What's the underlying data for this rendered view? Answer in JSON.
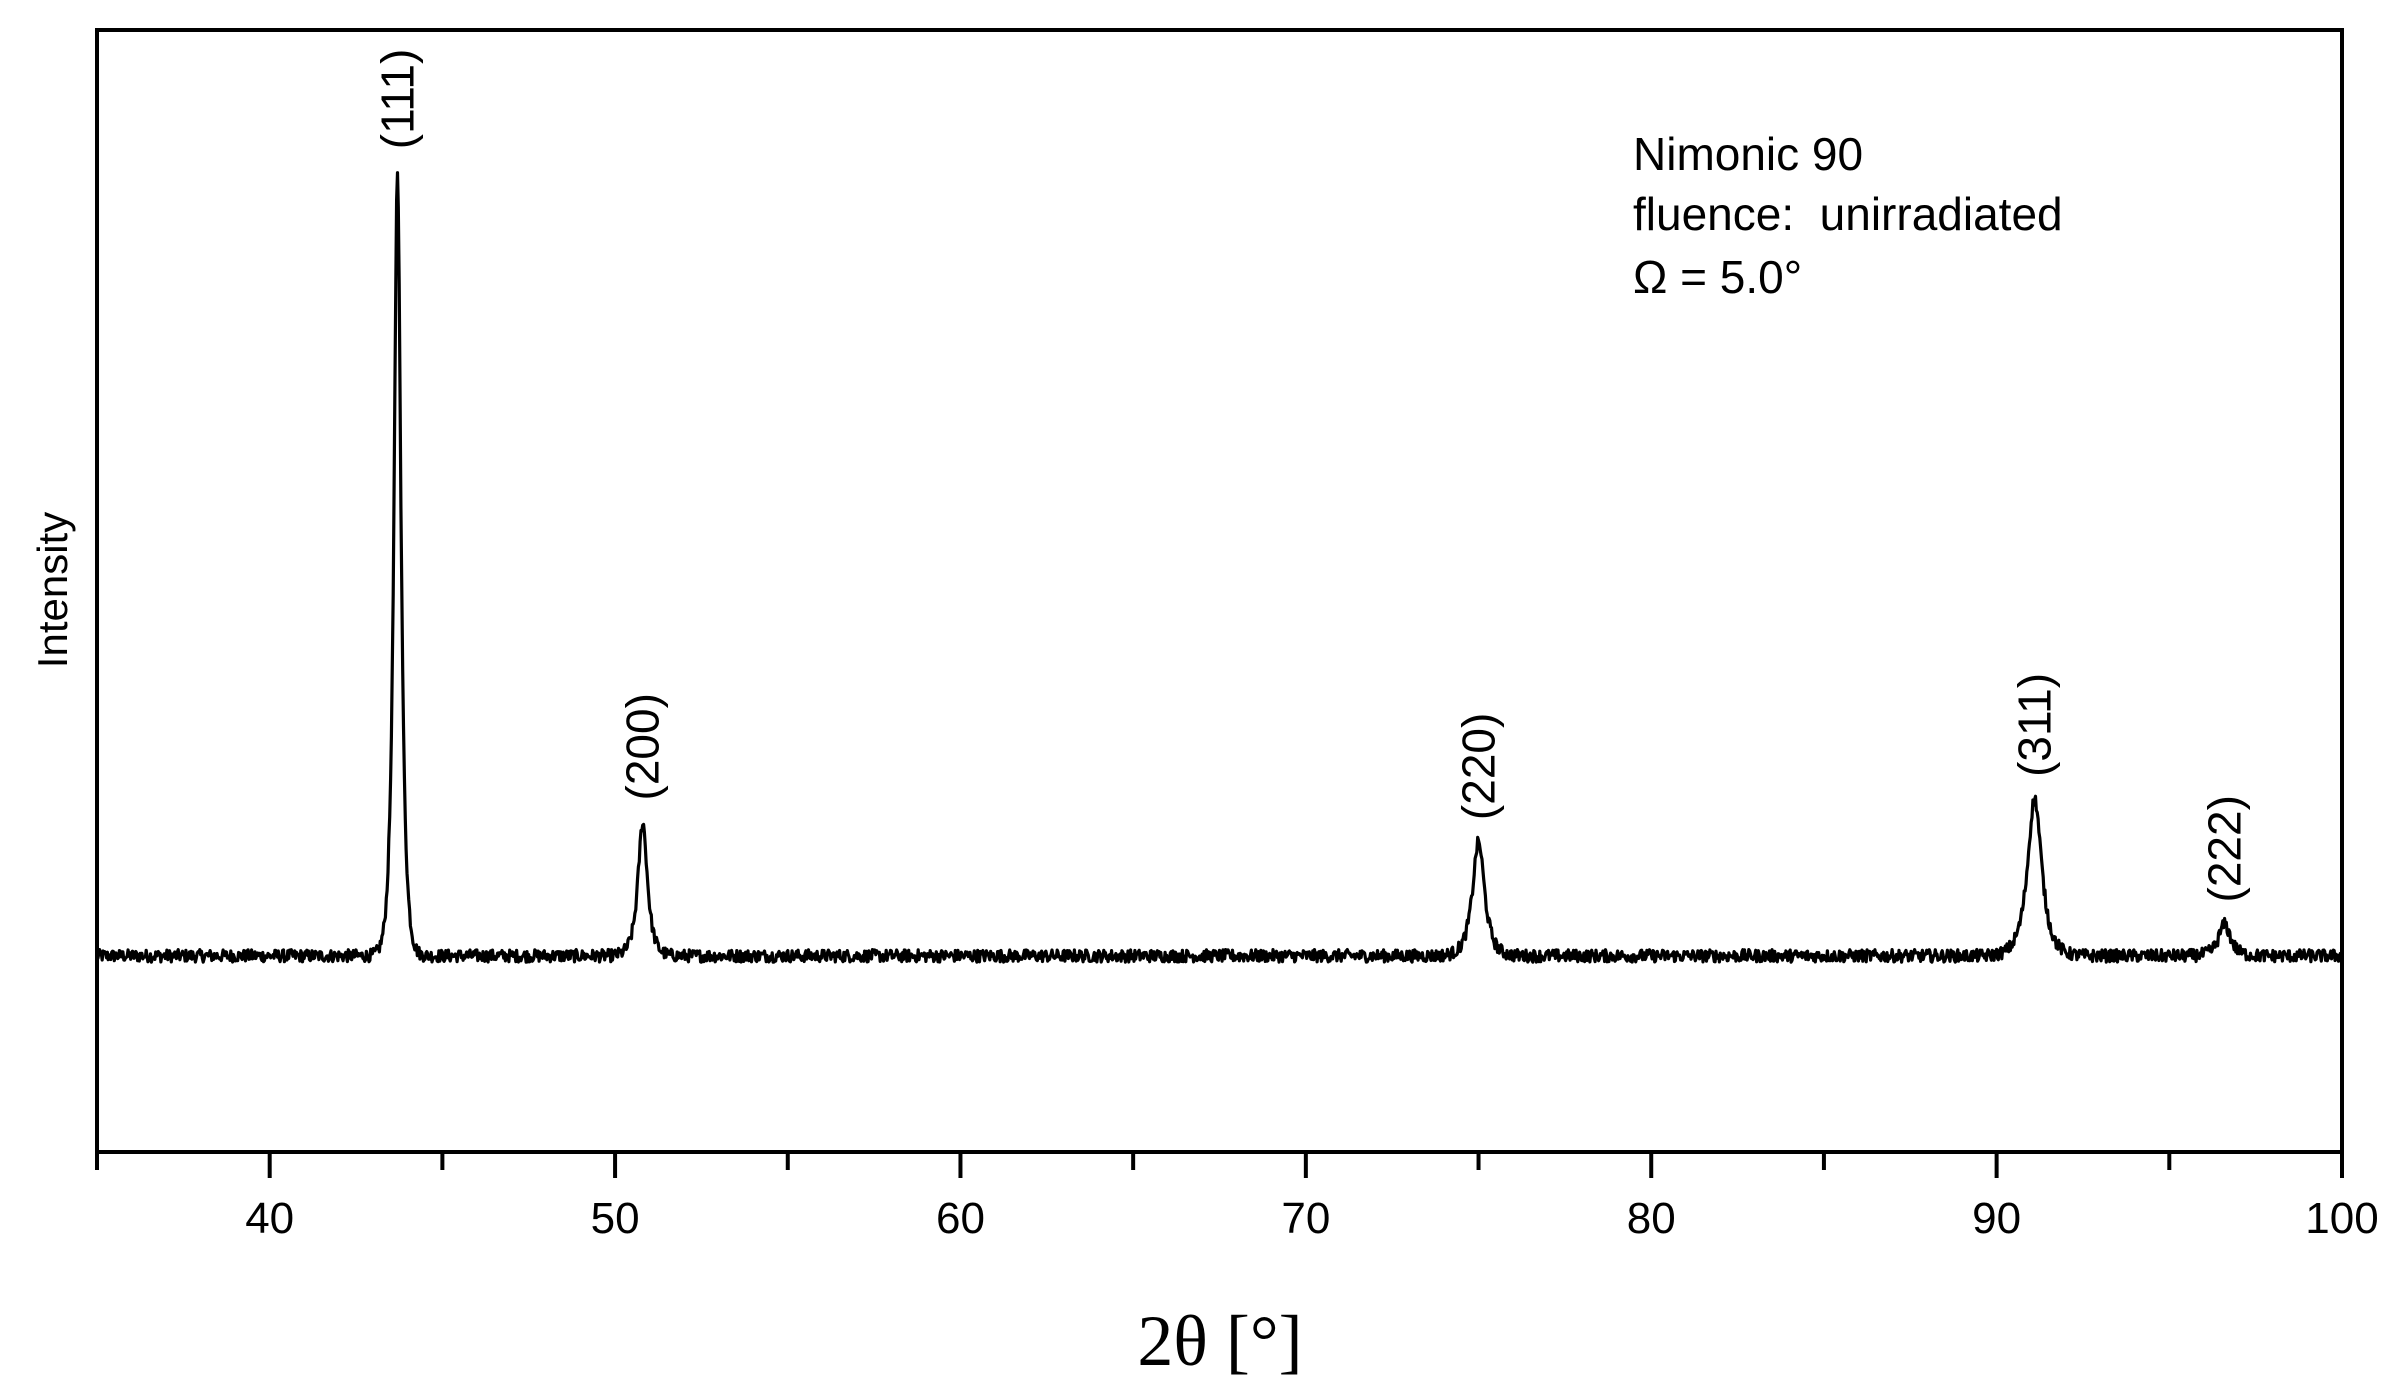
{
  "chart_data": {
    "type": "line",
    "title": "",
    "xlabel": "2θ [°]",
    "ylabel": "Intensity",
    "xlim": [
      35,
      100
    ],
    "ylim": [
      -0.25,
      1.18
    ],
    "x_ticks": [
      40,
      50,
      60,
      70,
      80,
      90,
      100
    ],
    "x_minor_ticks": [
      35,
      45,
      55,
      65,
      75,
      85,
      95
    ],
    "y_ticks_shown": false,
    "grid": false,
    "legend": "none",
    "line_color": "#000000",
    "annotation_lines": [
      "Nimonic 90",
      "fluence:  unirradiated",
      "Ω = 5.0°"
    ],
    "peaks": [
      {
        "label": "(111)",
        "x": 43.7,
        "height": 1.0,
        "width": 0.16
      },
      {
        "label": "(200)",
        "x": 50.8,
        "height": 0.17,
        "width": 0.22
      },
      {
        "label": "(220)",
        "x": 75.0,
        "height": 0.145,
        "width": 0.28
      },
      {
        "label": "(311)",
        "x": 91.1,
        "height": 0.2,
        "width": 0.33
      },
      {
        "label": "(222)",
        "x": 96.6,
        "height": 0.04,
        "width": 0.28
      }
    ],
    "series": [
      {
        "x_range": [
          35,
          100
        ],
        "baseline": 0.0,
        "noise": 0.008
      }
    ]
  }
}
